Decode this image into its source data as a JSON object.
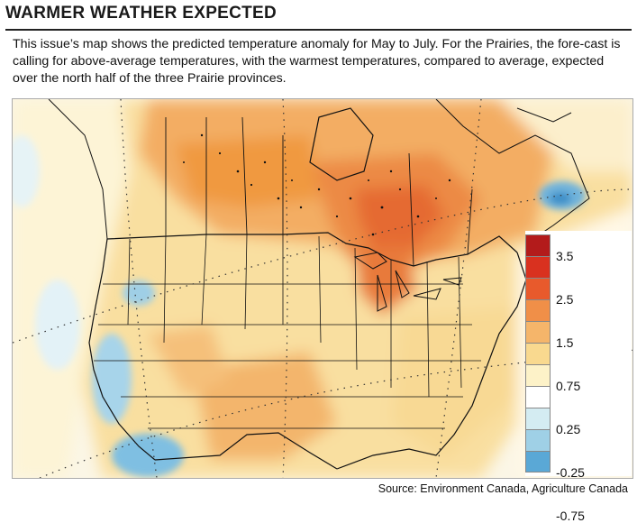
{
  "header": {
    "title": "WARMER WEATHER EXPECTED",
    "description": "This issue’s map shows the predicted temperature anomaly for May to July. For the Prairies, the fore-cast is calling for above-average temperatures, with the warmest temperatures, compared to average, expected over the north half of the three Prairie provinces."
  },
  "legend": {
    "labels": [
      "3.5",
      "2.5",
      "1.5",
      "0.75",
      "0.25",
      "-0.25",
      "-0.75"
    ],
    "colors": [
      "#b31b1b",
      "#d9311f",
      "#e85a2c",
      "#f08f48",
      "#f5b56a",
      "#f9d98f",
      "#fdf2c8",
      "#ffffff",
      "#d4ecf2",
      "#9fd0e6",
      "#5aa8d6"
    ]
  },
  "source": "Source: Environment Canada, Agriculture Canada"
}
